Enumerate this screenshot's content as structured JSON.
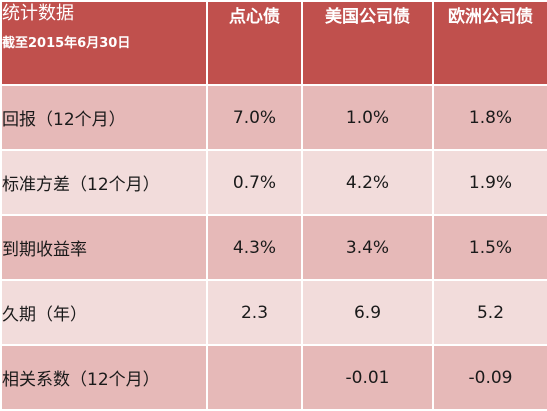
{
  "table": {
    "header": {
      "title": "统计数据",
      "subtitle": "截至2015年6月30日",
      "columns": [
        "点心债",
        "美国公司债",
        "欧洲公司债"
      ]
    },
    "rows": [
      {
        "label": "回报（12个月）",
        "values": [
          "7.0%",
          "1.0%",
          "1.8%"
        ]
      },
      {
        "label": "标准方差（12个月）",
        "values": [
          "0.7%",
          "4.2%",
          "1.9%"
        ]
      },
      {
        "label": "到期收益率",
        "values": [
          "4.3%",
          "3.4%",
          "1.5%"
        ]
      },
      {
        "label": "久期（年）",
        "values": [
          "2.3",
          "6.9",
          "5.2"
        ]
      },
      {
        "label": "相关系数（12个月）",
        "values": [
          "",
          "-0.01",
          "-0.09"
        ]
      }
    ]
  },
  "colors": {
    "header": "#c0504d",
    "row_dark": "#e6b9b8",
    "row_light": "#f2dcdb"
  }
}
